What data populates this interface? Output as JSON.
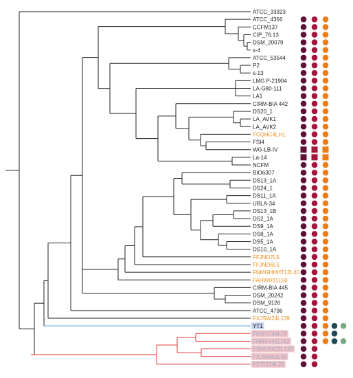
{
  "colors": {
    "branch": "#222222",
    "blue_branch": "#3aa0d8",
    "red_branch": "#e03a3a",
    "label_default": "#222222",
    "label_highlight": "#f08c1e",
    "yt1_bg": "#c8d4ee",
    "pink_bg": "#f2c4c8",
    "pink_text": "#9aa6c4",
    "marker_1": "#5e1038",
    "marker_2": "#a4163a",
    "marker_3": "#f07c16",
    "marker_4": "#1e4a56",
    "marker_5": "#7aaa84"
  },
  "taxa": [
    {
      "label": "ATCC_33323",
      "style": "default",
      "markers": []
    },
    {
      "label": "ATCC_4356",
      "style": "default",
      "markers": [
        "c",
        "c",
        "c"
      ]
    },
    {
      "label": "CCFM137",
      "style": "default",
      "markers": [
        "c",
        "c",
        "c"
      ]
    },
    {
      "label": "CIP_76.13",
      "style": "default",
      "markers": [
        "c",
        "c",
        "c"
      ]
    },
    {
      "label": "DSM_20079",
      "style": "default",
      "markers": [
        "c",
        "c",
        "c"
      ]
    },
    {
      "label": "s-4",
      "style": "default",
      "markers": [
        "c",
        "c",
        "c"
      ]
    },
    {
      "label": "ATCC_53544",
      "style": "default",
      "markers": [
        "c",
        "c",
        "c"
      ]
    },
    {
      "label": "P2",
      "style": "default",
      "markers": [
        "c",
        "c",
        "c"
      ]
    },
    {
      "label": "s-13",
      "style": "default",
      "markers": [
        "c",
        "c",
        "c"
      ]
    },
    {
      "label": "LMG P-21904",
      "style": "default",
      "markers": [
        "c",
        "c",
        "c"
      ]
    },
    {
      "label": "LA-G80-111",
      "style": "default",
      "markers": [
        "c",
        "c",
        "c"
      ]
    },
    {
      "label": "LA1",
      "style": "default",
      "markers": [
        "c",
        "c",
        "c"
      ]
    },
    {
      "label": "CIRM-BIA 442",
      "style": "default",
      "markers": [
        "c",
        "c",
        "c"
      ]
    },
    {
      "label": "DS20_1",
      "style": "default",
      "markers": [
        "c",
        "c",
        "c"
      ]
    },
    {
      "label": "LA_AVK1",
      "style": "default",
      "markers": [
        "c",
        "c",
        "c"
      ]
    },
    {
      "label": "LA_AVK2",
      "style": "default",
      "markers": [
        "c",
        "c",
        "c"
      ]
    },
    {
      "label": "FCQHC4LH1",
      "style": "orange",
      "markers": [
        "c",
        "c",
        "c"
      ]
    },
    {
      "label": "FSI4",
      "style": "default",
      "markers": [
        "c",
        "c",
        "c"
      ]
    },
    {
      "label": "WG-LB-IV",
      "style": "default",
      "markers": [
        "s",
        "s",
        "s"
      ]
    },
    {
      "label": "La-14",
      "style": "default",
      "markers": [
        "s",
        "s",
        "s"
      ]
    },
    {
      "label": "NCFM",
      "style": "default",
      "markers": [
        "c",
        "c",
        "c"
      ]
    },
    {
      "label": "BIO6307",
      "style": "default",
      "markers": [
        "c",
        "c",
        "c"
      ]
    },
    {
      "label": "DS13_1A",
      "style": "default",
      "markers": [
        "c",
        "c",
        "c"
      ]
    },
    {
      "label": "DS24_1",
      "style": "default",
      "markers": [
        "c",
        "c",
        "c"
      ]
    },
    {
      "label": "DS11_1A",
      "style": "default",
      "markers": [
        "c",
        "c",
        "c"
      ]
    },
    {
      "label": "UBLA-34",
      "style": "default",
      "markers": [
        "c",
        "c",
        "c"
      ]
    },
    {
      "label": "DS13_1B",
      "style": "default",
      "markers": [
        "c",
        "c",
        "c"
      ]
    },
    {
      "label": "DS2_1A",
      "style": "default",
      "markers": [
        "c",
        "c",
        "c"
      ]
    },
    {
      "label": "DS9_1A",
      "style": "default",
      "markers": [
        "c",
        "c",
        "c"
      ]
    },
    {
      "label": "DS8_1A",
      "style": "default",
      "markers": [
        "c",
        "c",
        "c"
      ]
    },
    {
      "label": "DS5_1A",
      "style": "default",
      "markers": [
        "c",
        "c",
        "c"
      ]
    },
    {
      "label": "DS10_1A",
      "style": "default",
      "markers": [
        "c",
        "c",
        "c"
      ]
    },
    {
      "label": "FFJND7L5",
      "style": "orange",
      "markers": [
        "c",
        "c",
        "c"
      ]
    },
    {
      "label": "FFJND6L5",
      "style": "orange",
      "markers": [
        "c",
        "c",
        "c"
      ]
    },
    {
      "label": "FNMGHHHT12L40",
      "style": "orange",
      "markers": [
        "c",
        "c",
        "c"
      ]
    },
    {
      "label": "FAHWH11L56",
      "style": "orange",
      "markers": [
        "c",
        "c",
        "c"
      ]
    },
    {
      "label": "CIRM-BIA 445",
      "style": "default",
      "markers": [
        "c",
        "c",
        "c"
      ]
    },
    {
      "label": "DSM_20242",
      "style": "default",
      "markers": [
        "c",
        "c",
        "c"
      ]
    },
    {
      "label": "DSM_9126",
      "style": "default",
      "markers": [
        "c",
        "c",
        "c"
      ]
    },
    {
      "label": "ATCC_4796",
      "style": "default",
      "markers": [
        "c",
        "c",
        "c"
      ]
    },
    {
      "label": "FXJSW24L139",
      "style": "orange",
      "markers": [
        "c",
        "c",
        "c"
      ]
    },
    {
      "label": "YT1",
      "style": "yt1",
      "markers": [
        "c",
        "c",
        "c",
        "c",
        "c"
      ]
    },
    {
      "label": "FGSYC48L79",
      "style": "pink",
      "markers": [
        "c",
        "c",
        "c",
        "c",
        ""
      ]
    },
    {
      "label": "FHNXY41L162",
      "style": "pink",
      "markers": [
        "c",
        "c",
        "c",
        "c",
        "c"
      ]
    },
    {
      "label": "FSHXBX32L130",
      "style": "pink",
      "markers": [
        "c",
        "c",
        "",
        "",
        ""
      ]
    },
    {
      "label": "FXJSW63L58",
      "style": "pink",
      "markers": [
        "c",
        "c",
        "",
        "",
        ""
      ]
    },
    {
      "label": "FZJTZ18L25",
      "style": "pink",
      "markers": [
        "c",
        "c",
        "",
        "",
        ""
      ]
    }
  ]
}
